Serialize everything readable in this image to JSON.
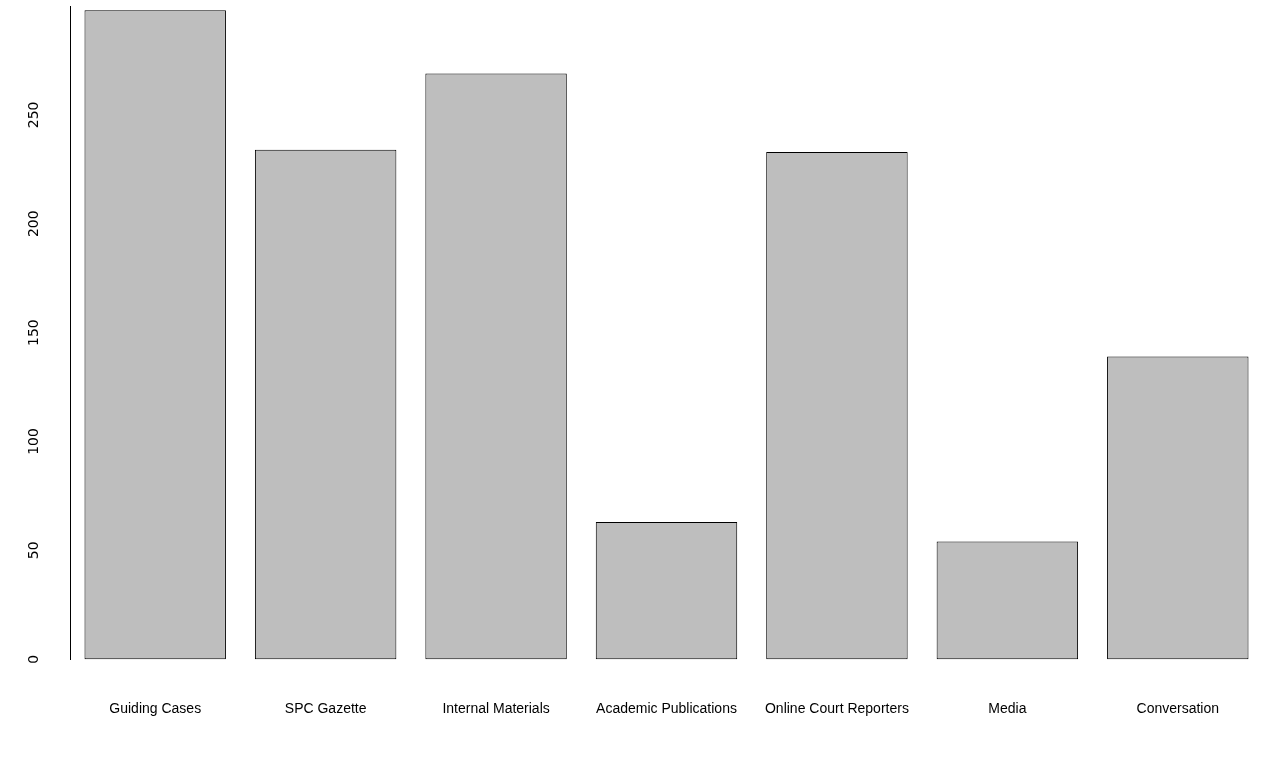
{
  "chart_data": {
    "type": "bar",
    "categories": [
      "Guiding Cases",
      "SPC Gazette",
      "Internal Materials",
      "Academic Publications",
      "Online Court Reporters",
      "Media",
      "Conversation"
    ],
    "values": [
      298,
      234,
      269,
      63,
      233,
      54,
      139
    ],
    "color": "#bebebe",
    "ylim": [
      0,
      300
    ],
    "yticks": [
      0,
      50,
      100,
      150,
      200,
      250
    ],
    "grid": false
  }
}
